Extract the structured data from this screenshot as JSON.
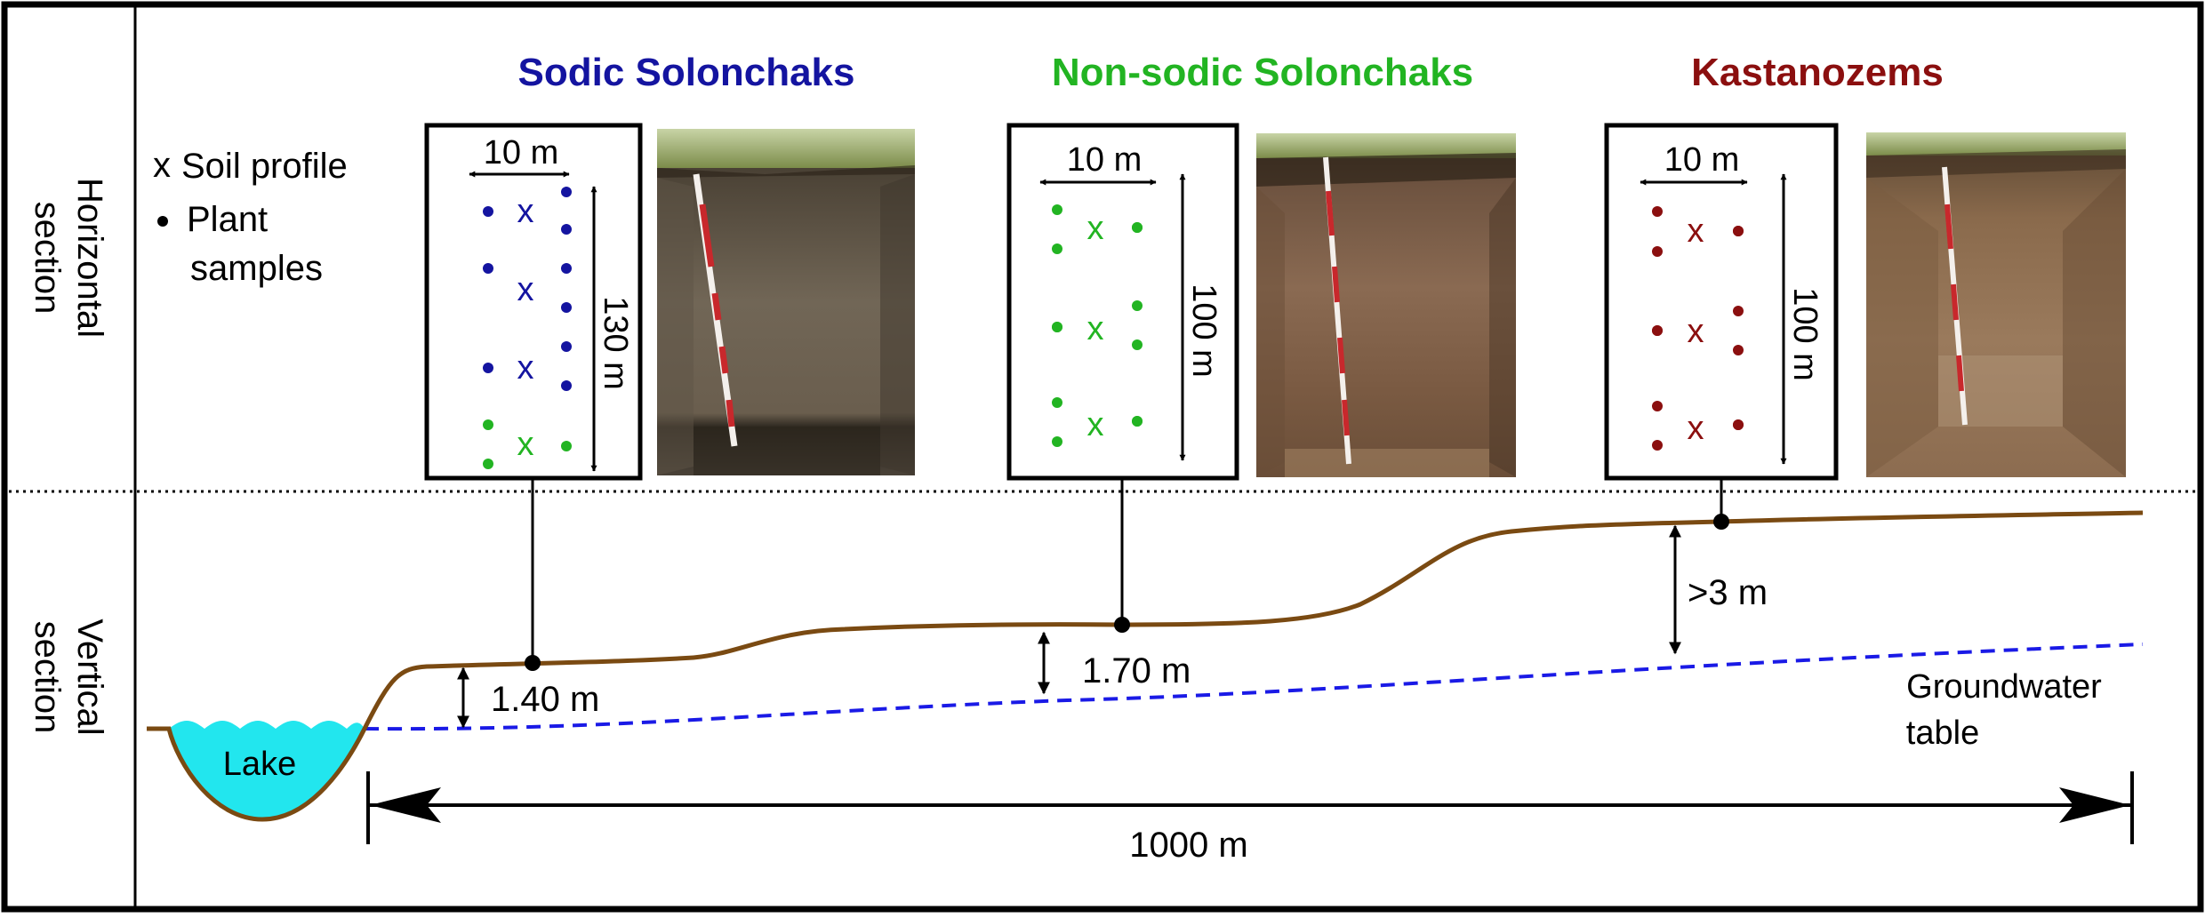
{
  "row_labels": {
    "horizontal": [
      "Horizontal",
      "section"
    ],
    "vertical": [
      "Vertical",
      "section"
    ]
  },
  "legend": {
    "soil_profile_symbol": "x",
    "soil_profile_label": "Soil profile",
    "plant_samples_label_line1": "Plant",
    "plant_samples_label_line2": "samples"
  },
  "sites": [
    {
      "title": "Sodic Solonchaks",
      "title_color": "#1414a0",
      "marker_color": "#1414a0",
      "width_label": "10 m",
      "length_label": "130 m",
      "depth_label": "1.40 m"
    },
    {
      "title": "Non-sodic Solonchaks",
      "title_color": "#22b422",
      "marker_color": "#22b422",
      "width_label": "10 m",
      "length_label": "100 m",
      "depth_label": "1.70 m"
    },
    {
      "title": "Kastanozems",
      "title_color": "#8b0f0f",
      "marker_color": "#8b0f0f",
      "width_label": "10 m",
      "length_label": "100 m",
      "depth_label": ">3 m"
    }
  ],
  "plot1_extra_marker_color": "#22b422",
  "lake_label": "Lake",
  "groundwater_label_line1": "Groundwater",
  "groundwater_label_line2": "table",
  "distance_label": "1000 m",
  "colors": {
    "terrain": "#7a4a12",
    "groundwater": "#1a1ae6",
    "lake_fill": "#22e6ee"
  }
}
